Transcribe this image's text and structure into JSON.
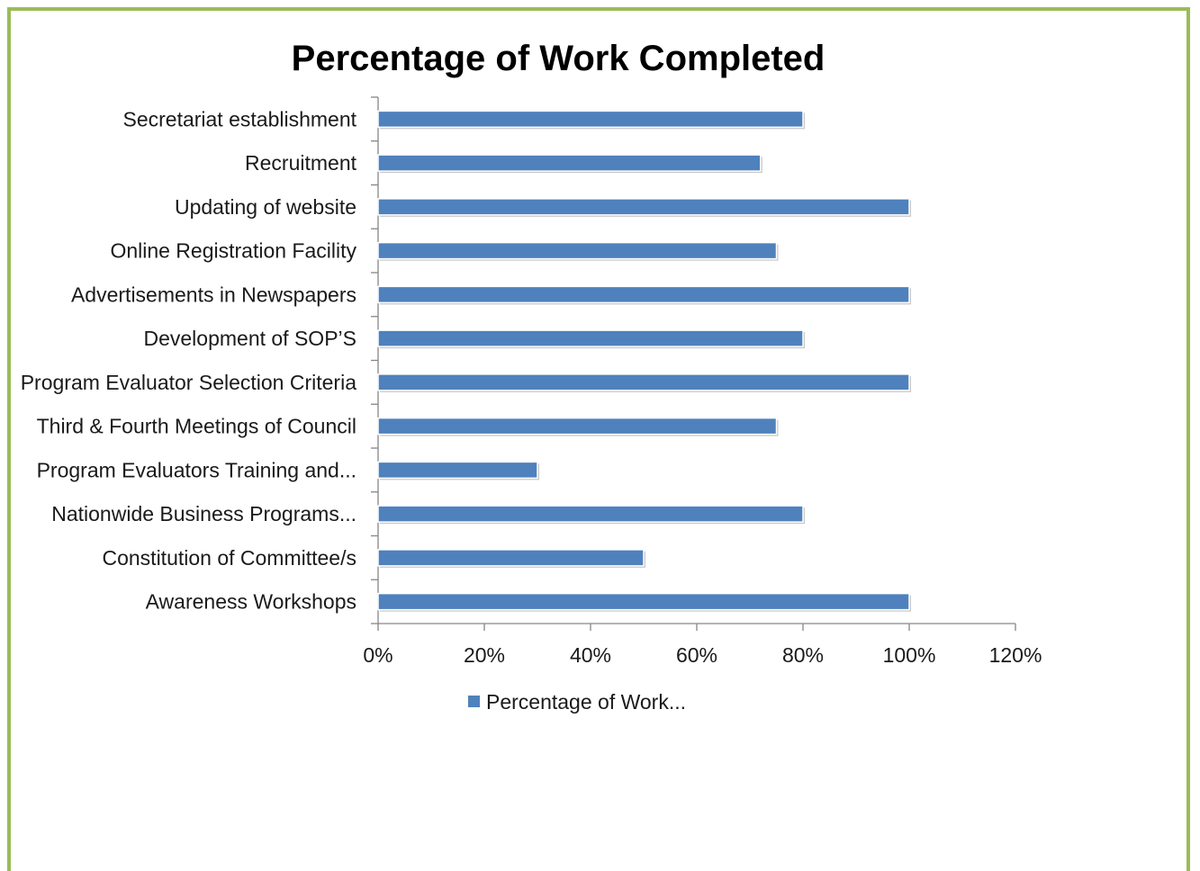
{
  "chart_data": {
    "type": "bar",
    "orientation": "horizontal",
    "title": "Percentage of Work Completed",
    "categories": [
      "Secretariat establishment",
      "Recruitment",
      "Updating of website",
      "Online Registration Facility",
      "Advertisements in Newspapers",
      "Development of SOP’S",
      "Program Evaluator Selection Criteria",
      "Third & Fourth Meetings of Council",
      "Program Evaluators Training and...",
      "Nationwide Business Programs...",
      "Constitution of Committee/s",
      "Awareness Workshops"
    ],
    "series": [
      {
        "name": "Percentage of Work...",
        "values": [
          80,
          72,
          100,
          75,
          100,
          80,
          100,
          75,
          30,
          80,
          50,
          100
        ],
        "color": "#4f81bd"
      }
    ],
    "xlim": [
      0,
      120
    ],
    "xticks": [
      0,
      20,
      40,
      60,
      80,
      100,
      120
    ],
    "xtick_labels": [
      "0%",
      "20%",
      "40%",
      "60%",
      "80%",
      "100%",
      "120%"
    ],
    "xlabel": "",
    "ylabel": "",
    "grid": false,
    "legend_position": "bottom"
  },
  "frame": {
    "border_color": "#9bbb59"
  }
}
